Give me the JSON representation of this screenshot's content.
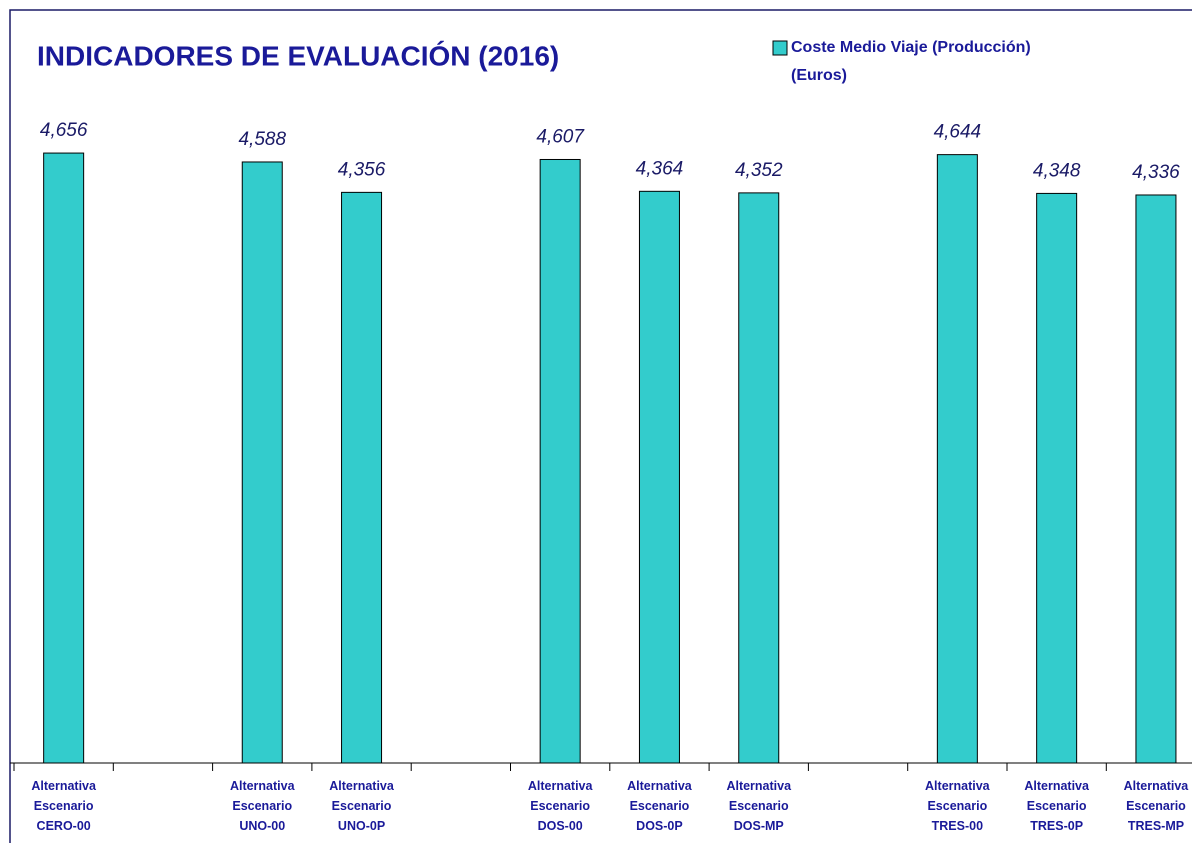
{
  "chart_data": {
    "type": "bar",
    "title": "INDICADORES DE EVALUACIÓN (2016)",
    "categories": [
      "Alternativa\nEscenario\nCERO-00",
      null,
      "Alternativa\nEscenario\nUNO-00",
      "Alternativa\nEscenario\nUNO-0P",
      null,
      "Alternativa\nEscenario\nDOS-00",
      "Alternativa\nEscenario\nDOS-0P",
      "Alternativa\nEscenario\nDOS-MP",
      null,
      "Alternativa\nEscenario\nTRES-00",
      "Alternativa\nEscenario\nTRES-0P",
      "Alternativa\nEscenario\nTRES-MP"
    ],
    "series": [
      {
        "name": "Coste Medio Viaje (Producción)\n(Euros)",
        "color": "#33cccc",
        "values": [
          4.656,
          null,
          4.588,
          4.356,
          null,
          4.607,
          4.364,
          4.352,
          null,
          4.644,
          4.348,
          4.336
        ],
        "value_labels": [
          "4,656",
          null,
          "4,588",
          "4,356",
          null,
          "4,607",
          "4,364",
          "4,352",
          null,
          "4,644",
          "4,348",
          "4,336"
        ]
      }
    ],
    "ylim": [
      0,
      5
    ],
    "legend": "top-right"
  }
}
